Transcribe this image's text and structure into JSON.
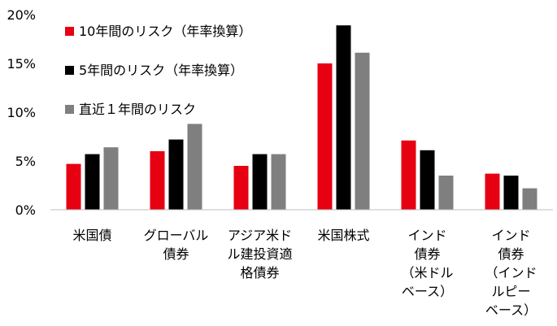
{
  "chart_data": {
    "type": "bar",
    "categories": [
      [
        "米国債"
      ],
      [
        "グローバル",
        "債券"
      ],
      [
        "アジア米ド",
        "ル建投資適",
        "格債券"
      ],
      [
        "米国株式"
      ],
      [
        "インド",
        "債券",
        "（米ドル",
        "ベース）"
      ],
      [
        "インド",
        "債券",
        "（インド",
        "ルピー",
        "ベース）"
      ]
    ],
    "series": [
      {
        "name": "10年間のリスク（年率換算）",
        "color": "#e60012",
        "values": [
          4.7,
          6.0,
          4.5,
          15.0,
          7.1,
          3.7
        ]
      },
      {
        "name": "5年間のリスク（年率換算）",
        "color": "#000000",
        "values": [
          5.7,
          7.2,
          5.7,
          18.9,
          6.1,
          3.5
        ]
      },
      {
        "name": "直近１年間のリスク",
        "color": "#7f7f7f",
        "values": [
          6.4,
          8.8,
          5.7,
          16.1,
          3.5,
          2.2
        ]
      }
    ],
    "yticks": [
      "0%",
      "5%",
      "10%",
      "15%",
      "20%"
    ],
    "ylim": [
      0,
      20
    ],
    "legend_position": "top-left",
    "grid": false
  }
}
